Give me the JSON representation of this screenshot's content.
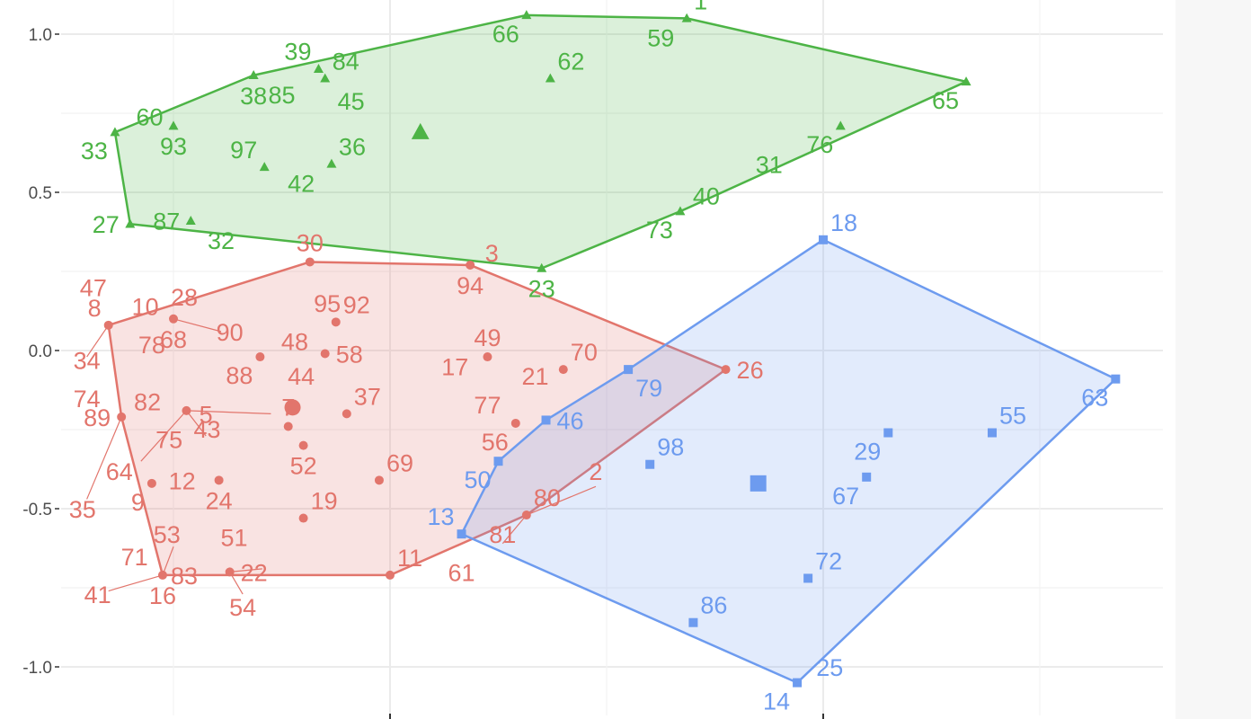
{
  "chart_data": {
    "type": "scatter",
    "title": "",
    "xlabel": "",
    "ylabel": "",
    "xlim": [
      -1.5,
      3.6
    ],
    "ylim": [
      -1.15,
      1.1
    ],
    "y_ticks": [
      1.0,
      0.5,
      0.0,
      -0.5,
      -1.0
    ],
    "y_tick_labels": [
      "1.0",
      "0.5",
      "0.0",
      "-0.5",
      "-1.0"
    ],
    "x_ticks": [
      0,
      2
    ],
    "grid": true,
    "legend": "none",
    "colors": {
      "red": "#E2756C",
      "green": "#4DB446",
      "blue": "#6D9BEF"
    },
    "series": [
      {
        "cluster": "red",
        "shape": "circle",
        "centroid": [
          -0.45,
          -0.18
        ],
        "hull": [
          "8",
          "30",
          "94",
          "26",
          "80",
          "11",
          "16",
          "89"
        ],
        "points": [
          {
            "id": "8",
            "x": -1.3,
            "y": 0.08,
            "label_pos": "above-left"
          },
          {
            "id": "30",
            "x": -0.37,
            "y": 0.28,
            "label_pos": "above"
          },
          {
            "id": "94",
            "x": 0.37,
            "y": 0.27,
            "label_pos": "below"
          },
          {
            "id": "26",
            "x": 1.55,
            "y": -0.06,
            "label_pos": "right"
          },
          {
            "id": "80",
            "x": 0.63,
            "y": -0.52,
            "label_pos": "above-right"
          },
          {
            "id": "11",
            "x": 0.0,
            "y": -0.71,
            "label_pos": "above-right"
          },
          {
            "id": "16",
            "x": -1.05,
            "y": -0.71,
            "label_pos": "below"
          },
          {
            "id": "89",
            "x": -1.24,
            "y": -0.21,
            "label_pos": "left"
          },
          {
            "id": "68",
            "x": -1.0,
            "y": 0.1,
            "label_pos": "below"
          },
          {
            "id": "88",
            "x": -0.6,
            "y": -0.02,
            "label_pos": "below-left"
          },
          {
            "id": "58",
            "x": -0.3,
            "y": -0.01,
            "label_pos": "right"
          },
          {
            "id": "92",
            "x": -0.25,
            "y": 0.09,
            "label_pos": "above-right"
          },
          {
            "id": "43",
            "x": -0.94,
            "y": -0.19,
            "label_pos": "below-right"
          },
          {
            "id": "7",
            "x": -0.47,
            "y": -0.24,
            "label_pos": "above"
          },
          {
            "id": "37",
            "x": -0.2,
            "y": -0.2,
            "label_pos": "above-right"
          },
          {
            "id": "52",
            "x": -0.4,
            "y": -0.3,
            "label_pos": "below"
          },
          {
            "id": "69",
            "x": -0.05,
            "y": -0.41,
            "label_pos": "above-right"
          },
          {
            "id": "24",
            "x": -0.79,
            "y": -0.41,
            "label_pos": "below"
          },
          {
            "id": "9",
            "x": -1.1,
            "y": -0.42,
            "label_pos": "below-left"
          },
          {
            "id": "19",
            "x": -0.4,
            "y": -0.53,
            "label_pos": "above-right"
          },
          {
            "id": "22",
            "x": -0.74,
            "y": -0.7,
            "label_pos": "right"
          },
          {
            "id": "49",
            "x": 0.45,
            "y": -0.02,
            "label_pos": "above"
          },
          {
            "id": "70",
            "x": 0.8,
            "y": -0.06,
            "label_pos": "above-right"
          },
          {
            "id": "56",
            "x": 0.58,
            "y": -0.23,
            "label_pos": "below-left"
          }
        ],
        "extra_labels": [
          "47",
          "10",
          "28",
          "34",
          "78",
          "90",
          "95",
          "48",
          "44",
          "82",
          "74",
          "5",
          "75",
          "64",
          "35",
          "12",
          "71",
          "53",
          "51",
          "83",
          "41",
          "54",
          "17",
          "21",
          "77",
          "2",
          "81",
          "61",
          "3"
        ]
      },
      {
        "cluster": "green",
        "shape": "triangle",
        "centroid": [
          0.14,
          0.69
        ],
        "hull": [
          "33",
          "38",
          "66",
          "1",
          "65",
          "73",
          "23",
          "27"
        ],
        "points": [
          {
            "id": "33",
            "x": -1.27,
            "y": 0.69,
            "label_pos": "below-left"
          },
          {
            "id": "38",
            "x": -0.63,
            "y": 0.87,
            "label_pos": "below"
          },
          {
            "id": "66",
            "x": 0.63,
            "y": 1.06,
            "label_pos": "below-left"
          },
          {
            "id": "1",
            "x": 1.37,
            "y": 1.05,
            "label_pos": "above-right"
          },
          {
            "id": "65",
            "x": 2.66,
            "y": 0.85,
            "label_pos": "below-left"
          },
          {
            "id": "73",
            "x": 1.34,
            "y": 0.44,
            "label_pos": "below-left"
          },
          {
            "id": "23",
            "x": 0.7,
            "y": 0.26,
            "label_pos": "below"
          },
          {
            "id": "27",
            "x": -1.2,
            "y": 0.4,
            "label_pos": "left"
          },
          {
            "id": "39",
            "x": -0.33,
            "y": 0.89,
            "label_pos": "above-left"
          },
          {
            "id": "84",
            "x": -0.3,
            "y": 0.86,
            "label_pos": "above-right"
          },
          {
            "id": "62",
            "x": 0.74,
            "y": 0.86,
            "label_pos": "above-right"
          },
          {
            "id": "93",
            "x": -1.0,
            "y": 0.71,
            "label_pos": "below"
          },
          {
            "id": "97",
            "x": -0.58,
            "y": 0.58,
            "label_pos": "above-left"
          },
          {
            "id": "36",
            "x": -0.27,
            "y": 0.59,
            "label_pos": "above-right"
          },
          {
            "id": "87",
            "x": -0.92,
            "y": 0.41,
            "label_pos": "left"
          },
          {
            "id": "76",
            "x": 2.08,
            "y": 0.71,
            "label_pos": "below-left"
          }
        ],
        "extra_labels": [
          "60",
          "85",
          "45",
          "59",
          "42",
          "32",
          "31",
          "40"
        ]
      },
      {
        "cluster": "blue",
        "shape": "square",
        "centroid": [
          1.7,
          -0.42
        ],
        "hull": [
          "18",
          "63",
          "14",
          "13",
          "50",
          "46",
          "79"
        ],
        "points": [
          {
            "id": "18",
            "x": 2.0,
            "y": 0.35,
            "label_pos": "above-right"
          },
          {
            "id": "63",
            "x": 3.35,
            "y": -0.09,
            "label_pos": "below-left"
          },
          {
            "id": "14",
            "x": 1.88,
            "y": -1.05,
            "label_pos": "below-left"
          },
          {
            "id": "13",
            "x": 0.33,
            "y": -0.58,
            "label_pos": "above-left"
          },
          {
            "id": "50",
            "x": 0.5,
            "y": -0.35,
            "label_pos": "below-left"
          },
          {
            "id": "46",
            "x": 0.72,
            "y": -0.22,
            "label_pos": "right"
          },
          {
            "id": "79",
            "x": 1.1,
            "y": -0.06,
            "label_pos": "below-right"
          },
          {
            "id": "98",
            "x": 1.2,
            "y": -0.36,
            "label_pos": "above-right"
          },
          {
            "id": "29",
            "x": 2.3,
            "y": -0.26,
            "label_pos": "below-left"
          },
          {
            "id": "55",
            "x": 2.78,
            "y": -0.26,
            "label_pos": "above-right"
          },
          {
            "id": "67",
            "x": 2.2,
            "y": -0.4,
            "label_pos": "below-left"
          },
          {
            "id": "72",
            "x": 1.93,
            "y": -0.72,
            "label_pos": "above-right"
          },
          {
            "id": "86",
            "x": 1.4,
            "y": -0.86,
            "label_pos": "above-right"
          }
        ],
        "extra_labels": [
          "25"
        ]
      }
    ],
    "free_labels": [
      {
        "text": "47",
        "c": "red",
        "x": -1.37,
        "y": 0.2
      },
      {
        "text": "10",
        "c": "red",
        "x": -1.13,
        "y": 0.14
      },
      {
        "text": "28",
        "c": "red",
        "x": -0.95,
        "y": 0.17
      },
      {
        "text": "34",
        "c": "red",
        "x": -1.4,
        "y": -0.03
      },
      {
        "text": "78",
        "c": "red",
        "x": -1.1,
        "y": 0.02
      },
      {
        "text": "90",
        "c": "red",
        "x": -0.74,
        "y": 0.06
      },
      {
        "text": "95",
        "c": "red",
        "x": -0.29,
        "y": 0.15
      },
      {
        "text": "48",
        "c": "red",
        "x": -0.44,
        "y": 0.03
      },
      {
        "text": "44",
        "c": "red",
        "x": -0.41,
        "y": -0.08
      },
      {
        "text": "82",
        "c": "red",
        "x": -1.12,
        "y": -0.16
      },
      {
        "text": "74",
        "c": "red",
        "x": -1.4,
        "y": -0.15
      },
      {
        "text": "5",
        "c": "red",
        "x": -0.85,
        "y": -0.2
      },
      {
        "text": "75",
        "c": "red",
        "x": -1.02,
        "y": -0.28
      },
      {
        "text": "64",
        "c": "red",
        "x": -1.25,
        "y": -0.38
      },
      {
        "text": "35",
        "c": "red",
        "x": -1.42,
        "y": -0.5
      },
      {
        "text": "12",
        "c": "red",
        "x": -0.96,
        "y": -0.41
      },
      {
        "text": "71",
        "c": "red",
        "x": -1.18,
        "y": -0.65
      },
      {
        "text": "53",
        "c": "red",
        "x": -1.03,
        "y": -0.58
      },
      {
        "text": "51",
        "c": "red",
        "x": -0.72,
        "y": -0.59
      },
      {
        "text": "83",
        "c": "red",
        "x": -0.95,
        "y": -0.71
      },
      {
        "text": "41",
        "c": "red",
        "x": -1.35,
        "y": -0.77
      },
      {
        "text": "54",
        "c": "red",
        "x": -0.68,
        "y": -0.81
      },
      {
        "text": "17",
        "c": "red",
        "x": 0.3,
        "y": -0.05
      },
      {
        "text": "21",
        "c": "red",
        "x": 0.67,
        "y": -0.08
      },
      {
        "text": "77",
        "c": "red",
        "x": 0.45,
        "y": -0.17
      },
      {
        "text": "2",
        "c": "red",
        "x": 0.95,
        "y": -0.38
      },
      {
        "text": "81",
        "c": "red",
        "x": 0.52,
        "y": -0.58
      },
      {
        "text": "61",
        "c": "red",
        "x": 0.33,
        "y": -0.7
      },
      {
        "text": "3",
        "c": "red",
        "x": 0.47,
        "y": 0.31
      },
      {
        "text": "60",
        "c": "green",
        "x": -1.11,
        "y": 0.74
      },
      {
        "text": "85",
        "c": "green",
        "x": -0.5,
        "y": 0.81
      },
      {
        "text": "45",
        "c": "green",
        "x": -0.18,
        "y": 0.79
      },
      {
        "text": "59",
        "c": "green",
        "x": 1.25,
        "y": 0.99
      },
      {
        "text": "42",
        "c": "green",
        "x": -0.41,
        "y": 0.53
      },
      {
        "text": "32",
        "c": "green",
        "x": -0.78,
        "y": 0.35
      },
      {
        "text": "31",
        "c": "green",
        "x": 1.75,
        "y": 0.59
      },
      {
        "text": "40",
        "c": "green",
        "x": 1.46,
        "y": 0.49
      },
      {
        "text": "25",
        "c": "blue",
        "x": 2.03,
        "y": -1.0
      }
    ],
    "connectors": [
      {
        "c": "red",
        "from": [
          -1.3,
          0.08
        ],
        "to": [
          -1.4,
          -0.02
        ]
      },
      {
        "c": "red",
        "from": [
          -1.0,
          0.1
        ],
        "to": [
          -0.78,
          0.06
        ]
      },
      {
        "c": "red",
        "from": [
          -0.94,
          -0.19
        ],
        "to": [
          -0.55,
          -0.2
        ]
      },
      {
        "c": "red",
        "from": [
          -0.94,
          -0.19
        ],
        "to": [
          -0.85,
          -0.27
        ]
      },
      {
        "c": "red",
        "from": [
          -0.94,
          -0.19
        ],
        "to": [
          -1.15,
          -0.35
        ]
      },
      {
        "c": "red",
        "from": [
          -1.24,
          -0.21
        ],
        "to": [
          -1.4,
          -0.47
        ]
      },
      {
        "c": "red",
        "from": [
          -1.05,
          -0.71
        ],
        "to": [
          -1.0,
          -0.62
        ]
      },
      {
        "c": "red",
        "from": [
          -1.05,
          -0.71
        ],
        "to": [
          -1.3,
          -0.76
        ]
      },
      {
        "c": "red",
        "from": [
          -0.74,
          -0.7
        ],
        "to": [
          -0.59,
          -0.69
        ]
      },
      {
        "c": "red",
        "from": [
          -0.74,
          -0.7
        ],
        "to": [
          -0.68,
          -0.77
        ]
      },
      {
        "c": "red",
        "from": [
          -0.6,
          -0.02
        ],
        "to": [
          -0.6,
          -0.02
        ]
      },
      {
        "c": "red",
        "from": [
          0.63,
          -0.52
        ],
        "to": [
          0.52,
          -0.61
        ]
      },
      {
        "c": "red",
        "from": [
          0.63,
          -0.52
        ],
        "to": [
          0.95,
          -0.43
        ]
      }
    ]
  }
}
